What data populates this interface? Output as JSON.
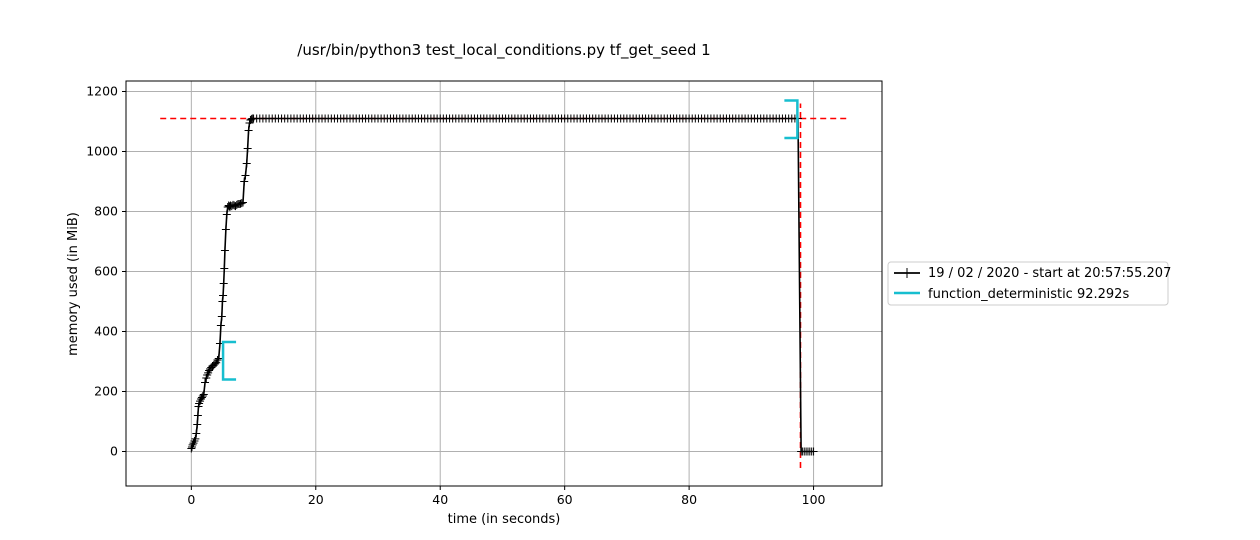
{
  "chart_data": {
    "type": "line",
    "title": "/usr/bin/python3 test_local_conditions.py tf_get_seed 1",
    "xlabel": "time (in seconds)",
    "ylabel": "memory used (in MiB)",
    "xlim": [
      -10.5,
      111
    ],
    "ylim": [
      -115,
      1235
    ],
    "xticks": [
      0,
      20,
      40,
      60,
      80,
      100
    ],
    "yticks": [
      0,
      200,
      400,
      600,
      800,
      1000,
      1200
    ],
    "grid": true,
    "legend": "right, outside the plot area",
    "colors": {
      "memory": "#000000",
      "bracket": "#17becf",
      "max_line": "#ff0000",
      "grid": "#b0b0b0"
    },
    "series": [
      {
        "name": "19 / 02 / 2020 - start at 20:57:55.207",
        "marker": "+",
        "x": [
          0.0,
          0.1,
          0.2,
          0.35,
          0.5,
          0.65,
          0.8,
          0.95,
          1.05,
          1.15,
          1.25,
          1.4,
          1.55,
          1.7,
          1.85,
          2.0,
          2.2,
          2.4,
          2.55,
          2.7,
          2.85,
          3.0,
          3.2,
          3.4,
          3.6,
          3.8,
          4.0,
          4.2,
          4.4,
          4.6,
          4.75,
          4.9,
          5.0,
          5.1,
          5.2,
          5.3,
          5.4,
          5.55,
          5.7,
          5.85,
          6.0,
          6.1,
          6.2,
          6.3,
          6.5,
          6.7,
          6.9,
          7.1,
          7.3,
          7.5,
          7.7,
          7.9,
          8.1,
          8.3,
          8.5,
          8.7,
          8.9,
          9.05,
          9.2,
          9.35,
          9.5,
          9.65,
          9.8,
          10.0,
          98.0,
          98.2,
          98.5,
          98.8,
          99.1,
          99.4,
          99.7,
          100.0
        ],
        "y": [
          10,
          15,
          22,
          28,
          35,
          42,
          60,
          90,
          120,
          150,
          160,
          168,
          175,
          180,
          185,
          190,
          230,
          245,
          255,
          262,
          270,
          275,
          280,
          285,
          288,
          292,
          296,
          305,
          310,
          360,
          420,
          450,
          500,
          520,
          560,
          610,
          670,
          740,
          790,
          815,
          820,
          818,
          815,
          820,
          818,
          822,
          820,
          818,
          822,
          825,
          825,
          826,
          828,
          830,
          900,
          920,
          960,
          1010,
          1070,
          1095,
          1105,
          1108,
          1110,
          1110,
          0,
          0,
          0,
          0,
          0,
          0,
          0,
          0
        ],
        "plateau": {
          "x_start": 10.0,
          "x_end": 97.5,
          "step": 0.5,
          "y": 1110
        }
      },
      {
        "name": "function_deterministic 92.292s",
        "type": "bracket-span",
        "start": 5.1,
        "end": 97.4,
        "start_range": [
          240,
          365
        ],
        "end_range": [
          1045,
          1170
        ]
      }
    ],
    "max_marker": {
      "y": 1110,
      "x_range": [
        -5,
        105.5
      ],
      "x": 97.9,
      "y_range": [
        -55,
        1160
      ]
    }
  }
}
